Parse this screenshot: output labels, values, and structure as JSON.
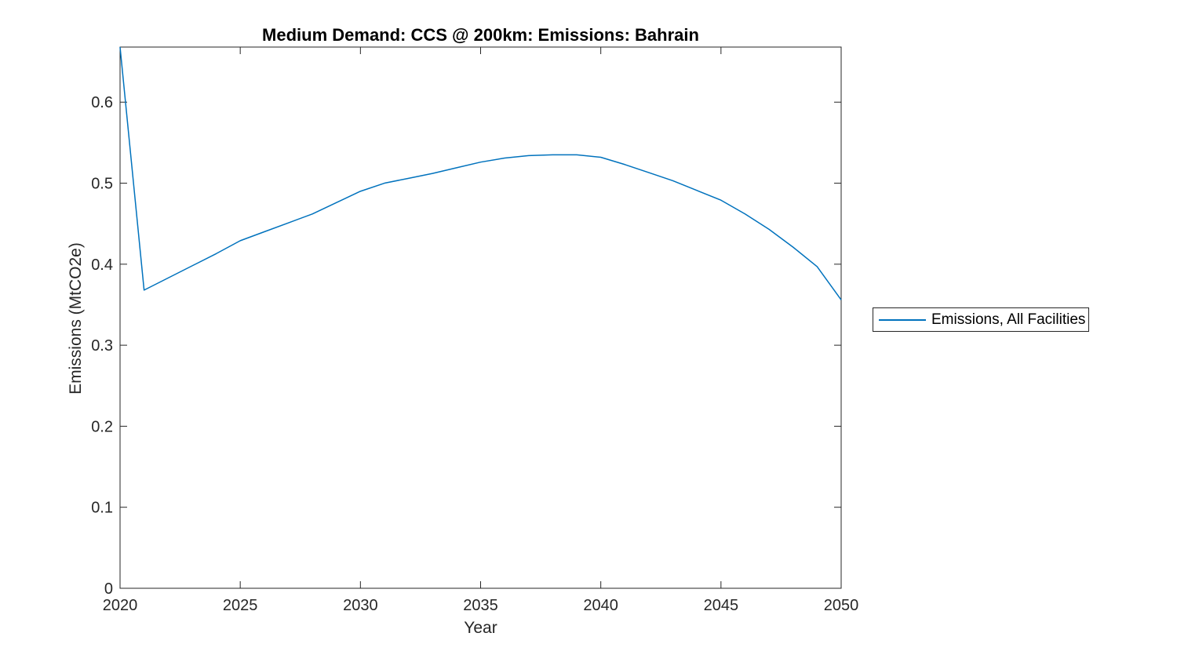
{
  "window": {
    "background_color": "#ffffff"
  },
  "chart": {
    "title": "Medium Demand: CCS @ 200km: Emissions: Bahrain",
    "xlabel": "Year",
    "ylabel": "Emissions (MtCO2e)",
    "legend_label": "Emissions, All Facilities",
    "line_color": "#0072BD",
    "axis_color": "#262626",
    "title_color": "#000000"
  },
  "chart_data": {
    "type": "line",
    "title": "Medium Demand: CCS @ 200km: Emissions: Bahrain",
    "xlabel": "Year",
    "ylabel": "Emissions (MtCO2e)",
    "legend_entries": [
      "Emissions, All Facilities"
    ],
    "legend_position": "outside-right",
    "grid": false,
    "box": true,
    "tick_direction": "in",
    "xlim": [
      2020,
      2050
    ],
    "ylim": [
      0,
      0.668
    ],
    "xticks": [
      2020,
      2025,
      2030,
      2035,
      2040,
      2045,
      2050
    ],
    "yticks": [
      0,
      0.1,
      0.2,
      0.3,
      0.4,
      0.5,
      0.6
    ],
    "x": [
      2020,
      2021,
      2022,
      2023,
      2024,
      2025,
      2026,
      2027,
      2028,
      2029,
      2030,
      2031,
      2032,
      2033,
      2034,
      2035,
      2036,
      2037,
      2038,
      2039,
      2040,
      2041,
      2042,
      2043,
      2044,
      2045,
      2046,
      2047,
      2048,
      2049,
      2050
    ],
    "series": [
      {
        "name": "Emissions, All Facilities",
        "color": "#0072BD",
        "values": [
          0.668,
          0.368,
          0.383,
          0.398,
          0.413,
          0.429,
          0.44,
          0.451,
          0.462,
          0.476,
          0.49,
          0.5,
          0.506,
          0.512,
          0.519,
          0.526,
          0.531,
          0.534,
          0.535,
          0.535,
          0.532,
          0.523,
          0.513,
          0.503,
          0.491,
          0.479,
          0.462,
          0.443,
          0.421,
          0.397,
          0.356
        ]
      }
    ]
  }
}
